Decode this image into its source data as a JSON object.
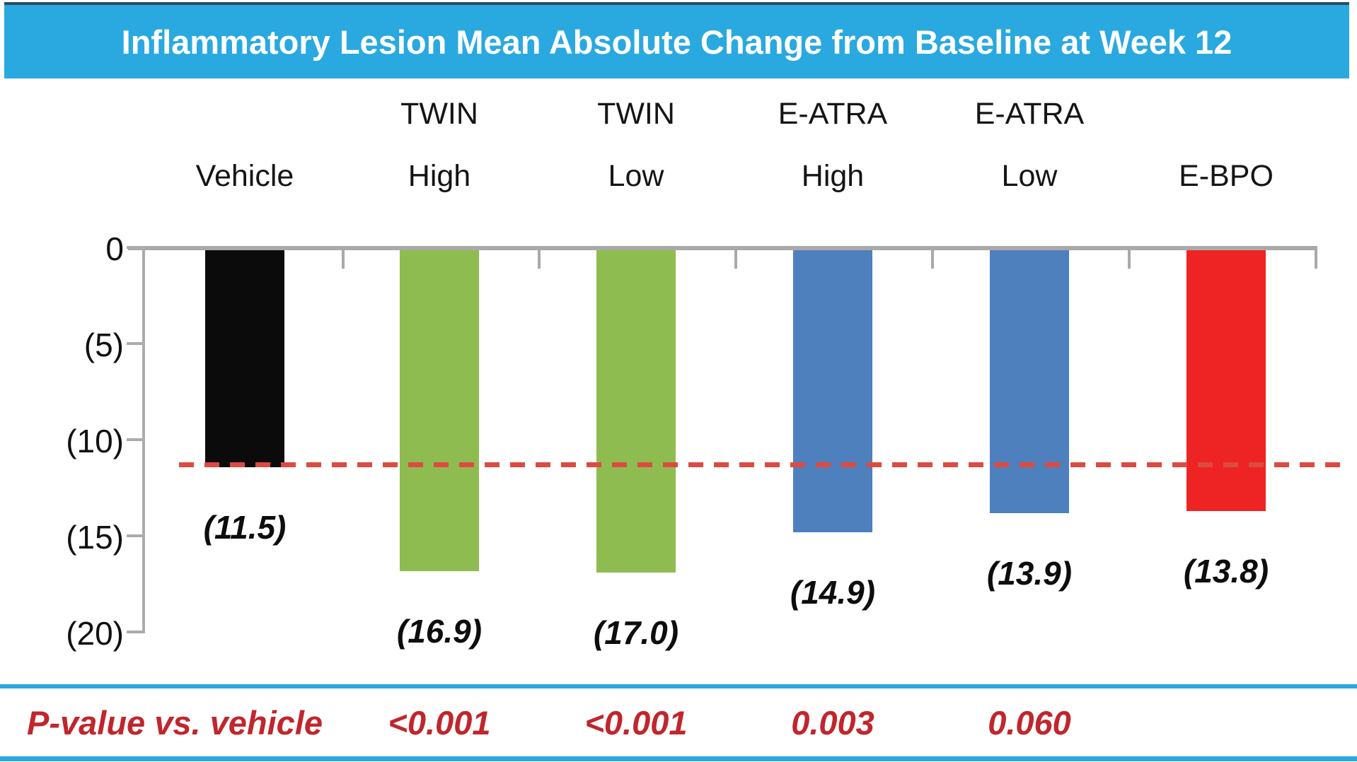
{
  "title": "Inflammatory Lesion Mean Absolute Change from Baseline at Week 12",
  "chart_data": {
    "type": "bar",
    "title": "Inflammatory Lesion Mean Absolute Change from Baseline at Week 12",
    "categories": [
      "Vehicle",
      "TWIN High",
      "TWIN Low",
      "E-ATRA High",
      "E-ATRA Low",
      "E-BPO"
    ],
    "category_header_lines": [
      [
        "",
        "Vehicle"
      ],
      [
        "TWIN",
        "High"
      ],
      [
        "TWIN",
        "Low"
      ],
      [
        "E-ATRA",
        "High"
      ],
      [
        "E-ATRA",
        "Low"
      ],
      [
        "",
        "E-BPO"
      ]
    ],
    "values": [
      -11.5,
      -16.9,
      -17.0,
      -14.9,
      -13.9,
      -13.8
    ],
    "value_labels": [
      "(11.5)",
      "(16.9)",
      "(17.0)",
      "(14.9)",
      "(13.9)",
      "(13.8)"
    ],
    "bar_colors": [
      "#0b0b0b",
      "#8fbc50",
      "#8fbc50",
      "#4e80be",
      "#4e80be",
      "#ee2424"
    ],
    "xlabel": "",
    "ylabel": "",
    "ylim": [
      -20,
      0
    ],
    "ytick_labels": [
      "0",
      "(5)",
      "(10)",
      "(15)",
      "(20)"
    ],
    "ytick_values": [
      0,
      -5,
      -10,
      -15,
      -20
    ],
    "grid": false,
    "legend": false,
    "reference_line": {
      "value": -11.5,
      "style": "dashed",
      "color": "#dc4b41",
      "meaning": "vehicle response level"
    },
    "p_value_row": {
      "label": "P-value vs. vehicle",
      "values": [
        "",
        "<0.001",
        "<0.001",
        "0.003",
        "0.060",
        ""
      ]
    }
  },
  "colors": {
    "title_bar": "#29a9df",
    "title_text": "#ffffff",
    "axis": "#a9a9a9",
    "pvalue_text": "#c0262c",
    "band_rule": "#29a9df",
    "reference_line": "#dc4b41",
    "background": "#ffffff"
  }
}
